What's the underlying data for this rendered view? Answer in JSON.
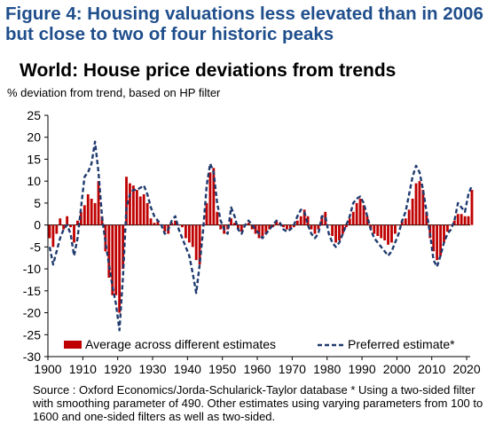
{
  "figure_title": "Figure 4: Housing valuations less elevated than in 2006 but close to two of four historic peaks",
  "chart_title": "World: House price deviations from trends",
  "subtitle": "% deviation from trend, based on HP filter",
  "source": "Source : Oxford Economics/Jorda-Schularick-Taylor database  * Using a two-sided filter with smoothing parameter of 490. Other estimates using varying parameters from 100 to 1600 and one-sided filters as well as two-sided.",
  "colors": {
    "bars": "#c00000",
    "line": "#1f3a6e",
    "title": "#1f4e8c"
  },
  "chart_data": {
    "type": "bar",
    "title": "World: House price deviations from trends",
    "ylabel": "% deviation from trend, based on HP filter",
    "xlabel": "",
    "ylim": [
      -30,
      25
    ],
    "xlim": [
      1900,
      2021
    ],
    "y_ticks": [
      25,
      20,
      15,
      10,
      5,
      0,
      -5,
      -10,
      -15,
      -20,
      -25,
      -30
    ],
    "x_ticks": [
      1900,
      1910,
      1920,
      1930,
      1940,
      1950,
      1960,
      1970,
      1980,
      1990,
      2000,
      2010,
      2020
    ],
    "legend_position": "bottom",
    "years": [
      1900,
      1901,
      1902,
      1903,
      1904,
      1905,
      1906,
      1907,
      1908,
      1909,
      1910,
      1911,
      1912,
      1913,
      1914,
      1915,
      1916,
      1917,
      1918,
      1919,
      1920,
      1921,
      1922,
      1923,
      1924,
      1925,
      1926,
      1927,
      1928,
      1929,
      1930,
      1931,
      1932,
      1933,
      1934,
      1935,
      1936,
      1937,
      1938,
      1939,
      1940,
      1941,
      1942,
      1943,
      1944,
      1945,
      1946,
      1947,
      1948,
      1949,
      1950,
      1951,
      1952,
      1953,
      1954,
      1955,
      1956,
      1957,
      1958,
      1959,
      1960,
      1961,
      1962,
      1963,
      1964,
      1965,
      1966,
      1967,
      1968,
      1969,
      1970,
      1971,
      1972,
      1973,
      1974,
      1975,
      1976,
      1977,
      1978,
      1979,
      1980,
      1981,
      1982,
      1983,
      1984,
      1985,
      1986,
      1987,
      1988,
      1989,
      1990,
      1991,
      1992,
      1993,
      1994,
      1995,
      1996,
      1997,
      1998,
      1999,
      2000,
      2001,
      2002,
      2003,
      2004,
      2005,
      2006,
      2007,
      2008,
      2009,
      2010,
      2011,
      2012,
      2013,
      2014,
      2015,
      2016,
      2017,
      2018,
      2019,
      2020,
      2021
    ],
    "series": [
      {
        "name": "Average across different estimates",
        "type": "bar",
        "values": [
          -3,
          -5,
          -2,
          1.5,
          -1,
          2,
          -0.5,
          -4,
          1,
          3,
          4.5,
          7,
          6,
          5,
          10,
          2,
          -6,
          -12,
          -16,
          -16,
          -20,
          -10,
          11,
          9.5,
          9,
          8,
          6.5,
          7,
          5,
          1.5,
          0.5,
          1,
          0,
          -1.5,
          -2,
          0.5,
          1,
          0,
          -0.5,
          -3,
          -4,
          -5,
          -8,
          -9,
          0,
          5,
          12,
          13,
          3,
          -1,
          -2,
          -1,
          1.5,
          0.5,
          -1,
          -1.5,
          0,
          0.5,
          -1,
          -2,
          -3,
          -2.5,
          -2,
          -1,
          -0.5,
          1,
          0.5,
          -0.5,
          -1,
          -1,
          -0.5,
          1,
          2,
          3.5,
          2,
          -1,
          -2,
          -1,
          2,
          3,
          0,
          -2.5,
          -4,
          -3.5,
          -2,
          -0.5,
          1.5,
          3,
          5,
          6,
          4.5,
          2,
          -1,
          -2,
          -2.5,
          -3,
          -3.5,
          -4.5,
          -4,
          -2,
          0,
          1,
          1.5,
          3.5,
          6,
          9.5,
          10,
          8,
          3,
          -3,
          -6,
          -8,
          -7,
          -4,
          -1.5,
          0,
          1,
          2.5,
          2.5,
          2,
          2,
          8
        ]
      },
      {
        "name": "Preferred estimate*",
        "type": "line",
        "values": [
          -5,
          -9,
          -6,
          -3,
          -1,
          0,
          -2,
          -7,
          -3,
          4,
          11,
          12,
          14,
          19,
          12,
          2,
          -4,
          -9,
          -14,
          -18,
          -24,
          -12,
          4,
          7,
          8,
          8,
          8.5,
          9,
          7,
          4,
          2,
          1,
          0,
          -2,
          -1,
          1,
          2,
          -1,
          -3,
          -5,
          -7,
          -11,
          -15.5,
          -9,
          -1,
          9,
          14,
          12,
          5,
          1,
          -1,
          -2,
          4,
          2,
          -1,
          -2,
          0,
          1,
          0,
          -1,
          -2,
          -3,
          -2,
          -1,
          0,
          1,
          0.5,
          -1,
          -1.5,
          -1,
          0,
          2,
          3.5,
          3,
          0,
          -2,
          -3,
          -2,
          2,
          2,
          -2,
          -4,
          -5,
          -4,
          -2,
          0,
          2,
          5,
          6,
          6.5,
          5,
          2,
          -1,
          -3,
          -4,
          -5,
          -6,
          -7,
          -6,
          -4,
          -2,
          1,
          3,
          7,
          11,
          13.5,
          12,
          8,
          3,
          -2,
          -8,
          -9.5,
          -7,
          -4,
          -2,
          -1,
          1,
          5,
          4,
          3,
          7,
          9
        ]
      }
    ]
  }
}
